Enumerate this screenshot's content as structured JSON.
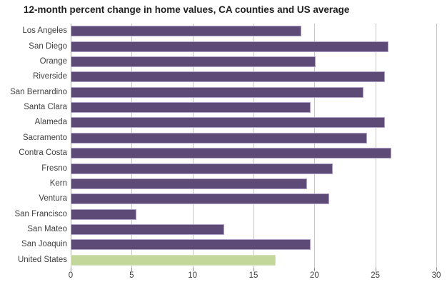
{
  "title": "12-month percent change in home values, CA counties and US average",
  "colors": {
    "county_bar_fill": "#5e4a76",
    "county_bar_border": "#b1a0c7",
    "us_bar_fill": "#c4d79b",
    "us_bar_border": "#d6e4bd",
    "gridline": "#c6c6c6",
    "axis_line": "#aaaaaa",
    "tick_mark": "#8c8c8c",
    "axis_text": "#3f3f3f",
    "title_text": "#1f1f1f"
  },
  "chart_data": {
    "type": "bar",
    "orientation": "horizontal",
    "title": "12-month percent change in home values, CA counties and US average",
    "categories": [
      "Los Angeles",
      "San Diego",
      "Orange",
      "Riverside",
      "San Bernardino",
      "Santa Clara",
      "Alameda",
      "Sacramento",
      "Contra Costa",
      "Fresno",
      "Kern",
      "Ventura",
      "San Francisco",
      "San Mateo",
      "San Joaquin",
      "United States"
    ],
    "values": [
      18.9,
      26.1,
      20.1,
      25.8,
      24.0,
      19.7,
      25.8,
      24.3,
      26.3,
      21.5,
      19.4,
      21.2,
      5.4,
      12.6,
      19.7,
      16.8
    ],
    "highlight_category": "United States",
    "xlabel": "",
    "ylabel": "",
    "xlim": [
      0,
      30
    ],
    "x_ticks": [
      0,
      5,
      10,
      15,
      20,
      25,
      30
    ],
    "grid": true,
    "legend": false
  }
}
